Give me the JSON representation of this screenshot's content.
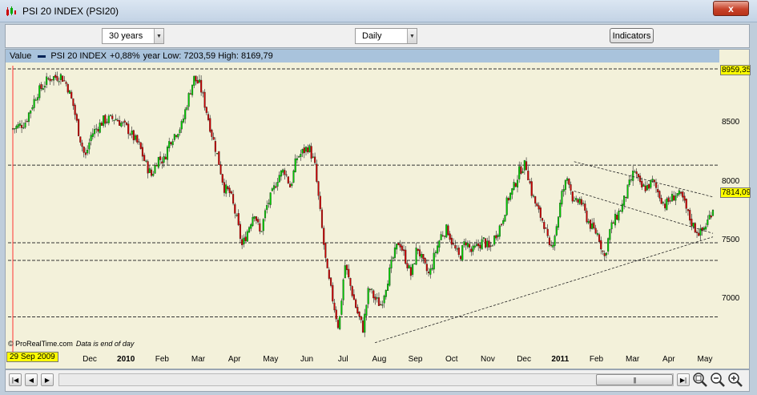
{
  "window": {
    "title": "PSI 20 INDEX (PSI20)",
    "close_glyph": "x",
    "icon": "candlestick-chart-icon"
  },
  "toolbar": {
    "period_value": "30 years",
    "interval_value": "Daily",
    "indicators_label": "Indicators"
  },
  "legend": {
    "label": "Value",
    "series_name": "PSI 20 INDEX",
    "change": "+0,88%",
    "summary": "year Low: 7203,59 High: 8169,79"
  },
  "chart": {
    "source": "© ProRealTime.com",
    "note": "Data is end of day",
    "start_date": "29 Sep 2009",
    "price_high_label": "8959,35",
    "price_last_label": "7814,09",
    "colors": {
      "up": "#00cc00",
      "down": "#cc0000",
      "background": "#f3f1da",
      "legend": "#a9c3dc",
      "badge": "#ffff00"
    }
  },
  "chart_data": {
    "type": "candlestick",
    "y_ticks": [
      8500,
      8000,
      7500,
      7000
    ],
    "ylim": [
      6560,
      9000
    ],
    "x_ticks": [
      {
        "label": "Dec",
        "bold": false
      },
      {
        "label": "2010",
        "bold": true
      },
      {
        "label": "Feb",
        "bold": false
      },
      {
        "label": "Mar",
        "bold": false
      },
      {
        "label": "Apr",
        "bold": false
      },
      {
        "label": "May",
        "bold": false
      },
      {
        "label": "Jun",
        "bold": false
      },
      {
        "label": "Jul",
        "bold": false
      },
      {
        "label": "Aug",
        "bold": false
      },
      {
        "label": "Sep",
        "bold": false
      },
      {
        "label": "Oct",
        "bold": false
      },
      {
        "label": "Nov",
        "bold": false
      },
      {
        "label": "Dec",
        "bold": false
      },
      {
        "label": "2011",
        "bold": true
      },
      {
        "label": "Feb",
        "bold": false
      },
      {
        "label": "Mar",
        "bold": false
      },
      {
        "label": "Apr",
        "bold": false
      },
      {
        "label": "May",
        "bold": false
      }
    ],
    "horizontal_levels": [
      8959,
      8140,
      7480,
      7330,
      6850
    ],
    "close_path": [
      [
        0,
        8450
      ],
      [
        2,
        8500
      ],
      [
        4,
        8750
      ],
      [
        6,
        8880
      ],
      [
        8,
        8900
      ],
      [
        9,
        8820
      ],
      [
        10,
        8650
      ],
      [
        11,
        8400
      ],
      [
        12,
        8200
      ],
      [
        13,
        8400
      ],
      [
        15,
        8520
      ],
      [
        17,
        8540
      ],
      [
        19,
        8450
      ],
      [
        21,
        8300
      ],
      [
        22,
        8150
      ],
      [
        23,
        8050
      ],
      [
        24,
        8200
      ],
      [
        25,
        8180
      ],
      [
        26,
        8350
      ],
      [
        28,
        8480
      ],
      [
        29,
        8700
      ],
      [
        30,
        8880
      ],
      [
        31,
        8820
      ],
      [
        32,
        8620
      ],
      [
        33,
        8400
      ],
      [
        34,
        8200
      ],
      [
        35,
        7950
      ],
      [
        36,
        7900
      ],
      [
        37,
        7700
      ],
      [
        38,
        7450
      ],
      [
        39,
        7600
      ],
      [
        40,
        7750
      ],
      [
        41,
        7550
      ],
      [
        42,
        7780
      ],
      [
        43,
        7900
      ],
      [
        44,
        8050
      ],
      [
        45,
        8100
      ],
      [
        46,
        7950
      ],
      [
        47,
        8200
      ],
      [
        48,
        8250
      ],
      [
        49,
        8300
      ],
      [
        50,
        8150
      ],
      [
        51,
        7700
      ],
      [
        52,
        7250
      ],
      [
        53,
        7000
      ],
      [
        54,
        6750
      ],
      [
        55,
        7300
      ],
      [
        56,
        7100
      ],
      [
        57,
        6900
      ],
      [
        58,
        6750
      ],
      [
        59,
        7100
      ],
      [
        60,
        7000
      ],
      [
        61,
        6950
      ],
      [
        62,
        7150
      ],
      [
        63,
        7350
      ],
      [
        64,
        7500
      ],
      [
        65,
        7350
      ],
      [
        66,
        7200
      ],
      [
        67,
        7450
      ],
      [
        68,
        7300
      ],
      [
        69,
        7200
      ],
      [
        70,
        7400
      ],
      [
        71,
        7550
      ],
      [
        72,
        7600
      ],
      [
        73,
        7450
      ],
      [
        74,
        7350
      ],
      [
        75,
        7500
      ],
      [
        76,
        7400
      ],
      [
        77,
        7450
      ],
      [
        78,
        7500
      ],
      [
        79,
        7420
      ],
      [
        80,
        7550
      ],
      [
        81,
        7650
      ],
      [
        82,
        7850
      ],
      [
        83,
        7950
      ],
      [
        84,
        8100
      ],
      [
        85,
        8150
      ],
      [
        86,
        7900
      ],
      [
        87,
        7750
      ],
      [
        88,
        7650
      ],
      [
        89,
        7400
      ],
      [
        90,
        7600
      ],
      [
        91,
        7900
      ],
      [
        92,
        8050
      ],
      [
        93,
        7800
      ],
      [
        94,
        7850
      ],
      [
        95,
        7700
      ],
      [
        96,
        7600
      ],
      [
        97,
        7550
      ],
      [
        98,
        7350
      ],
      [
        99,
        7600
      ],
      [
        100,
        7700
      ],
      [
        101,
        7800
      ],
      [
        102,
        7950
      ],
      [
        103,
        8100
      ],
      [
        104,
        7950
      ],
      [
        105,
        7950
      ],
      [
        106,
        8000
      ],
      [
        107,
        7900
      ],
      [
        108,
        7800
      ],
      [
        109,
        7850
      ],
      [
        110,
        7900
      ],
      [
        111,
        7850
      ],
      [
        112,
        7700
      ],
      [
        113,
        7600
      ],
      [
        114,
        7560
      ],
      [
        115,
        7650
      ],
      [
        116,
        7780
      ]
    ],
    "trendline_low": [
      [
        60,
        6630
      ],
      [
        116,
        7530
      ]
    ],
    "channel_upper": [
      [
        93,
        8170
      ],
      [
        116,
        7870
      ]
    ],
    "channel_lower": [
      [
        93,
        7920
      ],
      [
        116,
        7560
      ]
    ]
  }
}
